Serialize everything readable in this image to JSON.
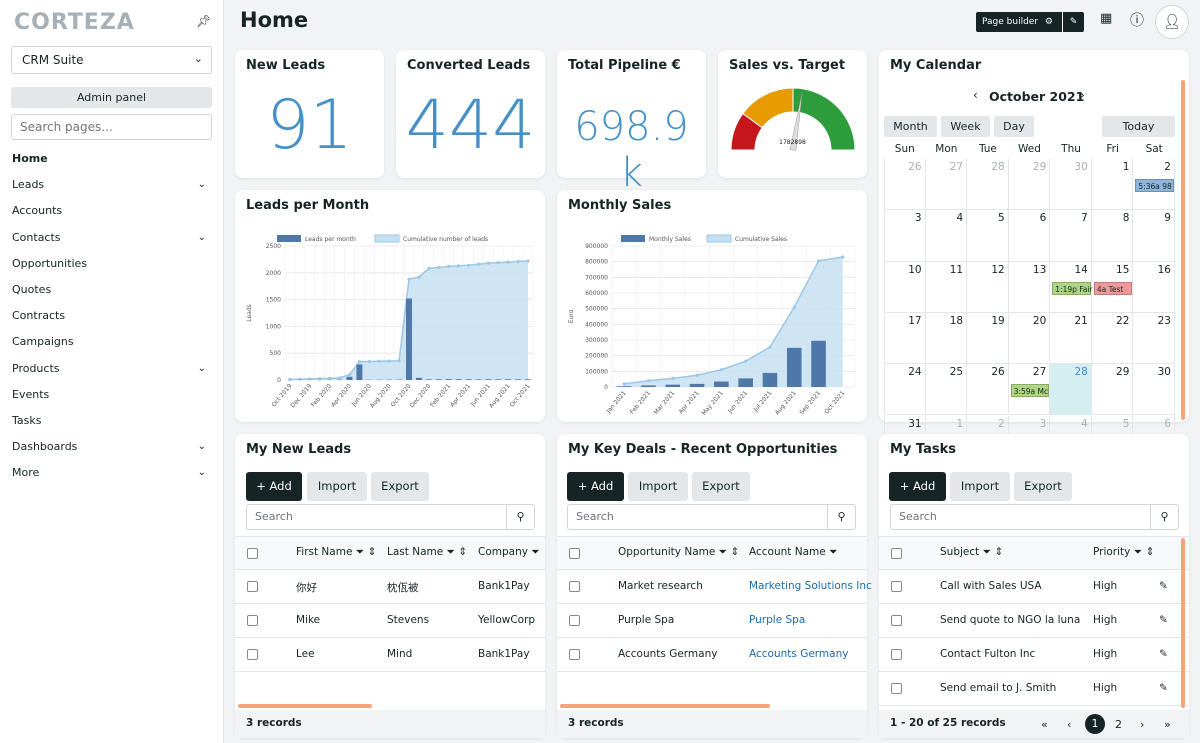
{
  "sidebar": {
    "logo": "CORTEZA",
    "app_selector": "CRM Suite",
    "admin_panel": "Admin panel",
    "search_placeholder": "Search pages...",
    "items": [
      {
        "label": "Home",
        "active": true,
        "children": false
      },
      {
        "label": "Leads",
        "children": true
      },
      {
        "label": "Accounts",
        "children": false
      },
      {
        "label": "Contacts",
        "children": true
      },
      {
        "label": "Opportunities",
        "children": false
      },
      {
        "label": "Quotes",
        "children": false
      },
      {
        "label": "Contracts",
        "children": false
      },
      {
        "label": "Campaigns",
        "children": false
      },
      {
        "label": "Products",
        "children": true
      },
      {
        "label": "Events",
        "children": false
      },
      {
        "label": "Tasks",
        "children": false
      },
      {
        "label": "Dashboards",
        "children": true
      },
      {
        "label": "More",
        "children": true
      }
    ]
  },
  "header": {
    "title": "Home",
    "page_builder": "Page builder"
  },
  "metrics": {
    "new_leads": {
      "title": "New Leads",
      "value": "91"
    },
    "converted_leads": {
      "title": "Converted Leads",
      "value": "444"
    },
    "total_pipeline": {
      "title": "Total Pipeline €",
      "value": "698.9 k"
    },
    "sales_vs_target": {
      "title": "Sales vs. Target",
      "value": "1782898",
      "fraction": 0.55
    }
  },
  "colors": {
    "accent": "#4591c7",
    "dark": "#162425",
    "gauge_red": "#c4161c",
    "gauge_orange": "#e89b00",
    "gauge_green": "#2c9d3a",
    "bar": "#4d78a8",
    "area": "#c7e0f1",
    "event_blue": "#8fb4da",
    "event_green": "#aed581",
    "event_red": "#ef9a9a"
  },
  "chart_data": [
    {
      "type": "bar",
      "title": "Leads per Month",
      "ylabel": "Leads",
      "ylim": [
        0,
        2500
      ],
      "yticks": [
        0,
        500,
        1000,
        1500,
        2000,
        2500
      ],
      "xticks": [
        "Oct 2019",
        "Dec 2019",
        "Feb 2020",
        "Apr 2020",
        "Jun 2020",
        "Aug 2020",
        "Oct 2020",
        "Dec 2020",
        "Feb 2021",
        "Apr 2021",
        "Jun 2021",
        "Aug 2021",
        "Oct 2021"
      ],
      "categories": [
        "Oct 2019",
        "Nov 2019",
        "Dec 2019",
        "Jan 2020",
        "Feb 2020",
        "Mar 2020",
        "Apr 2020",
        "May 2020",
        "Jun 2020",
        "Jul 2020",
        "Aug 2020",
        "Sep 2020",
        "Oct 2020",
        "Nov 2020",
        "Dec 2020",
        "Jan 2021",
        "Feb 2021",
        "Mar 2021",
        "Apr 2021",
        "May 2021",
        "Jun 2021",
        "Jul 2021",
        "Aug 2021",
        "Sep 2021",
        "Oct 2021"
      ],
      "series": [
        {
          "name": "Leads per month",
          "kind": "bar",
          "values": [
            2,
            3,
            3,
            4,
            4,
            6,
            60,
            290,
            4,
            5,
            6,
            7,
            1520,
            40,
            12,
            14,
            16,
            14,
            14,
            12,
            14,
            12,
            14,
            12,
            14
          ]
        },
        {
          "name": "Cumulative number of leads",
          "kind": "area",
          "values": [
            10,
            15,
            20,
            25,
            30,
            40,
            100,
            340,
            345,
            350,
            355,
            360,
            1880,
            1920,
            2080,
            2100,
            2120,
            2130,
            2140,
            2160,
            2180,
            2190,
            2200,
            2210,
            2220
          ]
        }
      ]
    },
    {
      "type": "bar",
      "title": "Monthly Sales",
      "ylabel": "Euro",
      "ylim": [
        0,
        900000
      ],
      "yticks": [
        0,
        100000,
        200000,
        300000,
        400000,
        500000,
        600000,
        700000,
        800000,
        900000
      ],
      "xticks": [
        "Jan 2021",
        "Feb 2021",
        "Mar 2021",
        "Apr 2021",
        "May 2021",
        "Jun 2021",
        "Jul 2021",
        "Aug 2021",
        "Sep 2021",
        "Oct 2021"
      ],
      "categories": [
        "Jan 2021",
        "Feb 2021",
        "Mar 2021",
        "Apr 2021",
        "May 2021",
        "Jun 2021",
        "Jul 2021",
        "Aug 2021",
        "Sep 2021",
        "Oct 2021"
      ],
      "series": [
        {
          "name": "Monthly Sales",
          "kind": "bar",
          "values": [
            5000,
            10000,
            15000,
            20000,
            35000,
            55000,
            90000,
            250000,
            295000,
            0
          ]
        },
        {
          "name": "Cumulative Sales",
          "kind": "area",
          "values": [
            20000,
            40000,
            55000,
            75000,
            110000,
            165000,
            255000,
            510000,
            805000,
            830000
          ]
        }
      ]
    }
  ],
  "calendar": {
    "title": "My Calendar",
    "month": "October 2021",
    "views": [
      "Month",
      "Week",
      "Day"
    ],
    "today": "Today",
    "weekdays": [
      "Sun",
      "Mon",
      "Tue",
      "Wed",
      "Thu",
      "Fri",
      "Sat"
    ],
    "weeks": [
      [
        "26",
        "27",
        "28",
        "29",
        "30",
        "1",
        "2"
      ],
      [
        "3",
        "4",
        "5",
        "6",
        "7",
        "8",
        "9"
      ],
      [
        "10",
        "11",
        "12",
        "13",
        "14",
        "15",
        "16"
      ],
      [
        "17",
        "18",
        "19",
        "20",
        "21",
        "22",
        "23"
      ],
      [
        "24",
        "25",
        "26",
        "27",
        "28",
        "29",
        "30"
      ],
      [
        "31",
        "1",
        "2",
        "3",
        "4",
        "5",
        "6"
      ]
    ],
    "events": [
      {
        "label": "5:36a 98",
        "week": 0,
        "day": 6,
        "color": "#8fb4da"
      },
      {
        "label": "1:19p Fair",
        "week": 2,
        "day": 4,
        "color": "#aed581"
      },
      {
        "label": "4a Test",
        "week": 2,
        "day": 5,
        "color": "#ef9a9a"
      },
      {
        "label": "3:59a Mc",
        "week": 4,
        "day": 3,
        "color": "#aed581"
      }
    ]
  },
  "leads_table": {
    "title": "My New Leads",
    "add": "+ Add",
    "import": "Import",
    "export": "Export",
    "search_placeholder": "Search",
    "columns": [
      "First Name",
      "Last Name",
      "Company"
    ],
    "rows": [
      [
        "你好",
        "枕佤被",
        "Bank1Pay"
      ],
      [
        "Mike",
        "Stevens",
        "YellowCorp"
      ],
      [
        "Lee",
        "Mind",
        "Bank1Pay"
      ]
    ],
    "footer": "3 records"
  },
  "deals_table": {
    "title": "My Key Deals - Recent Opportunities",
    "add": "+ Add",
    "import": "Import",
    "export": "Export",
    "search_placeholder": "Search",
    "columns": [
      "Opportunity Name",
      "Account Name"
    ],
    "rows": [
      [
        "Market research",
        "Marketing Solutions Inc"
      ],
      [
        "Purple Spa",
        "Purple Spa"
      ],
      [
        "Accounts Germany",
        "Accounts Germany"
      ]
    ],
    "footer": "3 records"
  },
  "tasks_table": {
    "title": "My Tasks",
    "add": "+ Add",
    "import": "Import",
    "export": "Export",
    "search_placeholder": "Search",
    "columns": [
      "Subject",
      "Priority"
    ],
    "rows": [
      [
        "Call with Sales USA",
        "High"
      ],
      [
        "Send quote to NGO la luna",
        "High"
      ],
      [
        "Contact Fulton Inc",
        "High"
      ],
      [
        "Send email to J. Smith",
        "High"
      ]
    ],
    "footer": "1 - 20 of 25 records",
    "pages": [
      "1",
      "2"
    ]
  }
}
